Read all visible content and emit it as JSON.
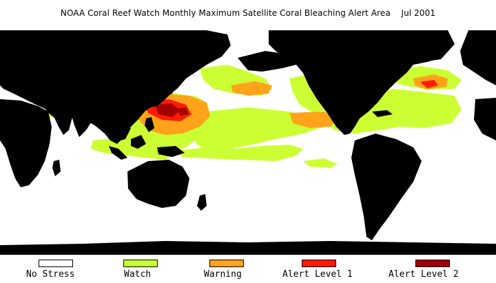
{
  "title": "NOAA Coral Reef Watch Monthly Maximum Satellite Coral Bleaching Alert Area    Jul 2001",
  "map": {
    "land_color": "#000000",
    "ocean_color": "#ffffff",
    "projection": "equirectangular",
    "center": "Pacific"
  },
  "legend": [
    {
      "label": "No Stress",
      "color": "#ffffff"
    },
    {
      "label": "Watch",
      "color": "#ccff33"
    },
    {
      "label": "Warning",
      "color": "#ffa31a"
    },
    {
      "label": "Alert Level 1",
      "color": "#ff1a00"
    },
    {
      "label": "Alert Level 2",
      "color": "#a30000"
    }
  ]
}
